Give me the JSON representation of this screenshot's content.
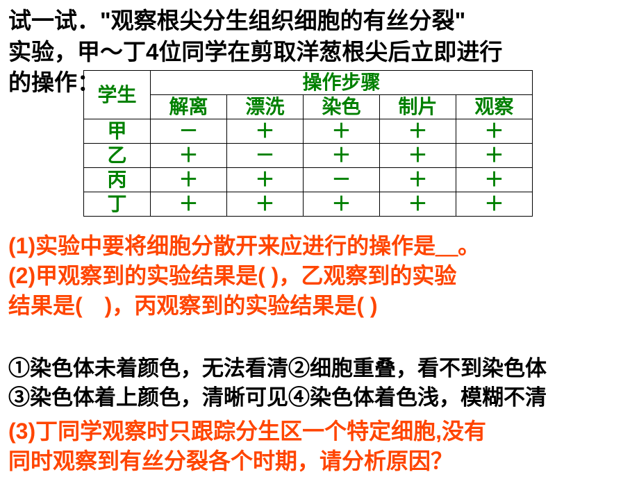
{
  "intro": {
    "line1": "试一试．\"观察根尖分生组织细胞的有丝分裂\"",
    "line2": "实验，甲～丁4位同学在剪取洋葱根尖后立即进行",
    "line3": "的操作："
  },
  "table": {
    "studentHeader": "学生",
    "stepsHeader": "操作步骤",
    "columns": [
      "解离",
      "漂洗",
      "染色",
      "制片",
      "观察"
    ],
    "rows": [
      {
        "name": "甲",
        "cells": [
          "－",
          "＋",
          "＋",
          "＋",
          "＋"
        ]
      },
      {
        "name": "乙",
        "cells": [
          "＋",
          "－",
          "＋",
          "＋",
          "＋"
        ]
      },
      {
        "name": "丙",
        "cells": [
          "＋",
          "＋",
          "－",
          "＋",
          "＋"
        ]
      },
      {
        "name": "丁",
        "cells": [
          "＋",
          "＋",
          "＋",
          "＋",
          "＋"
        ]
      }
    ]
  },
  "q1": {
    "line1": "(1)实验中要将细胞分散开来应进行的操作是＿。",
    "line2": "(2)甲观察到的实验结果是( )，乙观察到的实验",
    "line3": "结果是(　)，丙观察到的实验结果是( )"
  },
  "options": {
    "line1": "①染色体未着颜色，无法看清②细胞重叠，看不到染色体",
    "line2": "③染色体着上颜色，清晰可见④染色体着色浅，模糊不清"
  },
  "q3": {
    "line1": "(3)丁同学观察时只跟踪分生区一个特定细胞,没有",
    "line2": "同时观察到有丝分裂各个时期，请分析原因？"
  },
  "colors": {
    "black": "#000000",
    "green": "#008000",
    "orange": "#ff4500",
    "background": "#ffffff"
  }
}
